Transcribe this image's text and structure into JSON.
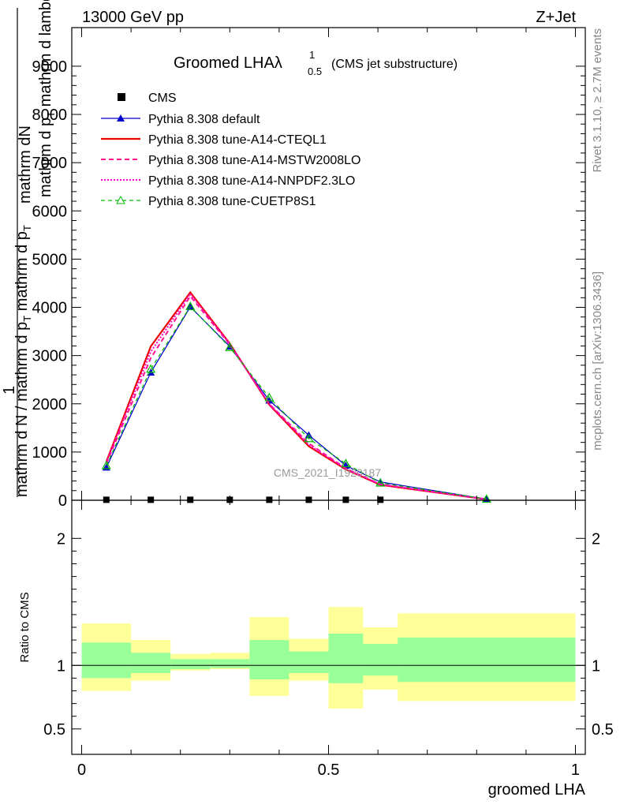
{
  "header": {
    "left": "13000 GeV pp",
    "right": "Z+Jet"
  },
  "side_labels": {
    "rivet": "Rivet 3.1.10, ≥ 2.7M events",
    "mcplots": "mcplots.cern.ch [arXiv:1306.3436]"
  },
  "title": {
    "main": "Groomed LHA",
    "lambda": "λ",
    "sup": "1",
    "sub": "0.5",
    "extra": "(CMS jet substructure)"
  },
  "ylabel_main": {
    "line1": "mathrm d",
    "line1b": "N",
    "line2": "mathrm d p",
    "line2b": "T",
    "line2c": " mathrm d lambda",
    "frac_top_line": "1",
    "frac_bottom": "mathrm d N / mathrm d p",
    "frac_bottom_sub": "T",
    "frac_bottom_tail": " mathrm d p",
    "frac_bottom_sub2": "T"
  },
  "ylabel_ratio": "Ratio to CMS",
  "xlabel": "groomed LHA",
  "watermark": "CMS_2021_I1920187",
  "colors": {
    "default": "#0000cc",
    "cteql1": "#ee0000",
    "mstw": "#ff1493",
    "nnpdf": "#ff00cc",
    "cuetp8s1": "#00bb00",
    "band_outer": "#ffff99",
    "band_inner": "#99ff99"
  },
  "chart_data": {
    "type": "line",
    "x_edges": [
      0,
      0.1,
      0.18,
      0.26,
      0.34,
      0.42,
      0.5,
      0.57,
      0.64,
      1.0
    ],
    "x": [
      0.05,
      0.14,
      0.22,
      0.3,
      0.38,
      0.46,
      0.535,
      0.605,
      0.82
    ],
    "xlim": [
      -0.02,
      1.02
    ],
    "main": {
      "ylim": [
        0,
        9800
      ],
      "yticks": [
        0,
        1000,
        2000,
        3000,
        4000,
        5000,
        6000,
        7000,
        8000,
        9000
      ],
      "ytick_labels": [
        "0",
        "1000",
        "2000",
        "3000",
        "4000",
        "5000",
        "6000",
        "7000",
        "8000",
        "9000"
      ],
      "cms": [
        10,
        10,
        10,
        10,
        10,
        10,
        10,
        10
      ],
      "cms_x": [
        0.05,
        0.14,
        0.22,
        0.3,
        0.38,
        0.46,
        0.535,
        0.605
      ],
      "series": [
        {
          "name": "Pythia 8.308 default",
          "key": "default",
          "values": [
            680,
            2650,
            4010,
            3190,
            2070,
            1350,
            720,
            380,
            25
          ]
        },
        {
          "name": "Pythia 8.308 tune-A14-CTEQL1",
          "key": "cteql1",
          "values": [
            800,
            3190,
            4310,
            3250,
            1980,
            1120,
            640,
            320,
            20
          ]
        },
        {
          "name": "Pythia 8.308 tune-A14-MSTW2008LO",
          "key": "mstw",
          "values": [
            760,
            2950,
            4230,
            3230,
            2000,
            1180,
            660,
            330,
            20
          ]
        },
        {
          "name": "Pythia 8.308 tune-A14-NNPDF2.3LO",
          "key": "nnpdf",
          "values": [
            790,
            3080,
            4280,
            3240,
            1990,
            1150,
            650,
            330,
            20
          ]
        },
        {
          "name": "Pythia 8.308 tune-CUETP8S1",
          "key": "cuetp8s1",
          "values": [
            720,
            2720,
            4020,
            3170,
            2130,
            1280,
            760,
            360,
            25
          ]
        }
      ]
    },
    "ratio": {
      "ylim": [
        0.3,
        2.3
      ],
      "yticks": [
        0.5,
        1,
        2
      ],
      "ytick_labels": [
        "0.5",
        "1",
        "2"
      ],
      "outer": [
        [
          0.8,
          1.33
        ],
        [
          0.88,
          1.2
        ],
        [
          0.96,
          1.09
        ],
        [
          0.97,
          1.1
        ],
        [
          0.76,
          1.38
        ],
        [
          0.88,
          1.21
        ],
        [
          0.66,
          1.46
        ],
        [
          0.81,
          1.3
        ],
        [
          0.72,
          1.41
        ]
      ],
      "inner": [
        [
          0.9,
          1.18
        ],
        [
          0.94,
          1.1
        ],
        [
          0.97,
          1.05
        ],
        [
          0.98,
          1.05
        ],
        [
          0.89,
          1.2
        ],
        [
          0.94,
          1.11
        ],
        [
          0.86,
          1.25
        ],
        [
          0.92,
          1.17
        ],
        [
          0.87,
          1.22
        ]
      ]
    },
    "xticks": [
      0,
      0.5,
      1
    ],
    "xtick_labels": [
      "0",
      "0.5",
      "1"
    ],
    "grid": false,
    "legend": "top-left"
  }
}
